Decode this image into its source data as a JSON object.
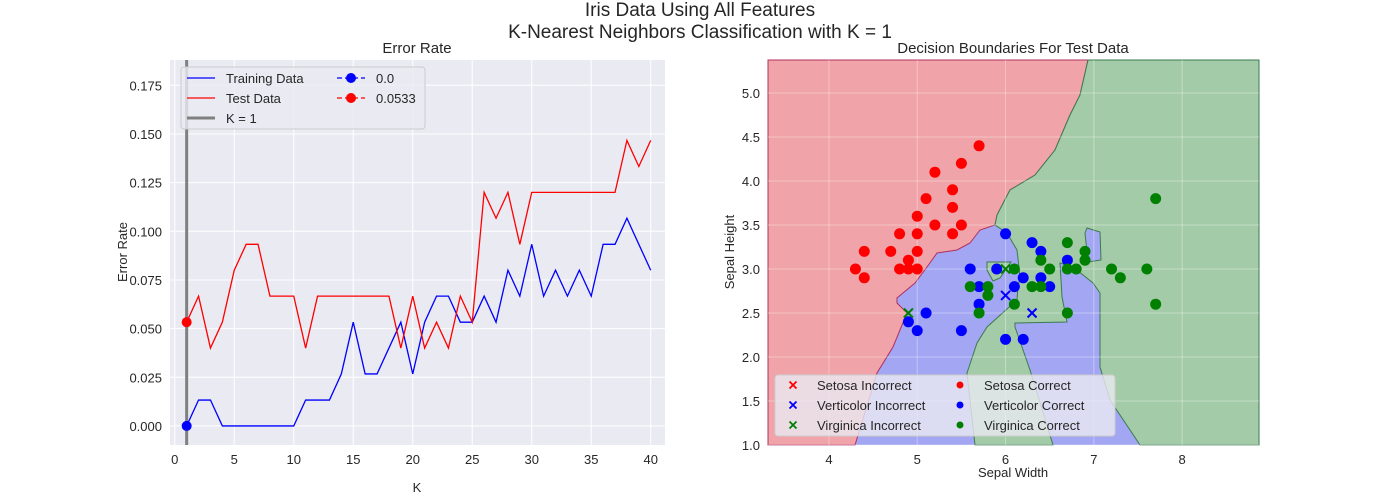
{
  "figure": {
    "title_line1": "Iris Data Using All Features",
    "title_line2": "K-Nearest Neighbors Classification with K = 1"
  },
  "colors": {
    "bg": "#EAEAF2",
    "red": "#FF0000",
    "blue": "#0000FF",
    "green": "#008000",
    "kline": "#808080",
    "region_red": "#F0A3A8",
    "region_blue": "#A3A6F2",
    "region_green": "#A3CBA7"
  },
  "chart_data": [
    {
      "type": "line",
      "title": "Error Rate",
      "xlabel": "K",
      "ylabel": "Error Rate",
      "xlim": [
        -0.4,
        41.2
      ],
      "ylim": [
        -0.0098,
        0.188
      ],
      "xticks": [
        0,
        5,
        10,
        15,
        20,
        25,
        30,
        35,
        40
      ],
      "yticks": [
        "0.000",
        "0.025",
        "0.050",
        "0.075",
        "0.100",
        "0.125",
        "0.150",
        "0.175"
      ],
      "grid": true,
      "legend_position": "top-left",
      "x": [
        1,
        2,
        3,
        4,
        5,
        6,
        7,
        8,
        9,
        10,
        11,
        12,
        13,
        14,
        15,
        16,
        17,
        18,
        19,
        20,
        21,
        22,
        23,
        24,
        25,
        26,
        27,
        28,
        29,
        30,
        31,
        32,
        33,
        34,
        35,
        36,
        37,
        38,
        39,
        40
      ],
      "series": [
        {
          "name": "Training Data",
          "color": "#0000FF",
          "values": [
            0,
            0.0133,
            0.0133,
            0,
            0,
            0,
            0,
            0,
            0,
            0,
            0.0133,
            0.0133,
            0.0133,
            0.0267,
            0.0533,
            0.0267,
            0.0267,
            0.04,
            0.0533,
            0.0267,
            0.0533,
            0.0667,
            0.0667,
            0.0533,
            0.0533,
            0.0667,
            0.0533,
            0.08,
            0.0667,
            0.0933,
            0.0667,
            0.08,
            0.0667,
            0.08,
            0.0667,
            0.0933,
            0.0933,
            0.1067,
            0.0933,
            0.08
          ]
        },
        {
          "name": "Test Data",
          "color": "#FF0000",
          "values": [
            0.0533,
            0.0667,
            0.04,
            0.0533,
            0.08,
            0.0933,
            0.0933,
            0.0667,
            0.0667,
            0.0667,
            0.04,
            0.0667,
            0.0667,
            0.0667,
            0.0667,
            0.0667,
            0.0667,
            0.0667,
            0.04,
            0.0667,
            0.04,
            0.0533,
            0.04,
            0.0667,
            0.0533,
            0.12,
            0.1067,
            0.12,
            0.0933,
            0.12,
            0.12,
            0.12,
            0.12,
            0.12,
            0.12,
            0.12,
            0.12,
            0.1467,
            0.1333,
            0.1467
          ]
        }
      ],
      "markers": [
        {
          "name": "0.0",
          "x": 1,
          "y": 0.0,
          "color": "#0000FF"
        },
        {
          "name": "0.0533",
          "x": 1,
          "y": 0.0533,
          "color": "#FF0000"
        }
      ],
      "vline": {
        "name": "K = 1",
        "x": 1
      }
    },
    {
      "type": "scatter",
      "title": "Decision Boundaries For Test Data",
      "xlabel": "Sepal Width",
      "ylabel": "Sepal Height",
      "xlim": [
        3.31,
        8.87
      ],
      "ylim": [
        1.0,
        5.375
      ],
      "xticks": [
        4,
        5,
        6,
        7,
        8
      ],
      "yticks": [
        "1.0",
        "1.5",
        "2.0",
        "2.5",
        "3.0",
        "3.5",
        "4.0",
        "4.5",
        "5.0"
      ],
      "grid": true,
      "legend_position": "lower-left",
      "legend": [
        "Setosa Incorrect",
        "Verticolor Incorrect",
        "Virginica Incorrect",
        "Setosa Correct",
        "Verticolor Correct",
        "Virginica Correct"
      ],
      "setosa_correct": [
        [
          5.7,
          4.4
        ],
        [
          5.5,
          4.2
        ],
        [
          5.2,
          4.1
        ],
        [
          5.4,
          3.9
        ],
        [
          5.1,
          3.8
        ],
        [
          5.4,
          3.7
        ],
        [
          5.0,
          3.6
        ],
        [
          5.2,
          3.5
        ],
        [
          5.5,
          3.5
        ],
        [
          4.8,
          3.4
        ],
        [
          5.0,
          3.4
        ],
        [
          5.4,
          3.4
        ],
        [
          4.4,
          3.2
        ],
        [
          4.7,
          3.2
        ],
        [
          5.0,
          3.2
        ],
        [
          4.9,
          3.1
        ],
        [
          4.3,
          3.0
        ],
        [
          4.8,
          3.0
        ],
        [
          4.9,
          3.0
        ],
        [
          5.0,
          3.0
        ],
        [
          4.4,
          2.9
        ]
      ],
      "versicolor_correct": [
        [
          6.0,
          3.4
        ],
        [
          6.3,
          3.3
        ],
        [
          6.4,
          3.2
        ],
        [
          6.7,
          3.1
        ],
        [
          5.6,
          3.0
        ],
        [
          5.9,
          3.0
        ],
        [
          6.2,
          2.9
        ],
        [
          6.4,
          2.9
        ],
        [
          5.7,
          2.8
        ],
        [
          6.1,
          2.8
        ],
        [
          6.5,
          2.8
        ],
        [
          5.7,
          2.6
        ],
        [
          5.1,
          2.5
        ],
        [
          4.9,
          2.4
        ],
        [
          5.0,
          2.3
        ],
        [
          5.5,
          2.3
        ],
        [
          6.0,
          2.2
        ],
        [
          6.2,
          2.2
        ]
      ],
      "virginica_correct": [
        [
          7.7,
          3.8
        ],
        [
          6.7,
          3.3
        ],
        [
          6.9,
          3.2
        ],
        [
          6.4,
          3.1
        ],
        [
          6.9,
          3.1
        ],
        [
          6.1,
          3.0
        ],
        [
          6.5,
          3.0
        ],
        [
          6.7,
          3.0
        ],
        [
          6.8,
          3.0
        ],
        [
          7.2,
          3.0
        ],
        [
          7.6,
          3.0
        ],
        [
          7.3,
          2.9
        ],
        [
          5.6,
          2.8
        ],
        [
          5.8,
          2.8
        ],
        [
          6.3,
          2.8
        ],
        [
          6.4,
          2.8
        ],
        [
          5.8,
          2.7
        ],
        [
          6.1,
          2.6
        ],
        [
          5.7,
          2.5
        ],
        [
          6.7,
          2.5
        ],
        [
          7.7,
          2.6
        ]
      ],
      "setosa_incorrect": [],
      "versicolor_incorrect": [
        [
          6.0,
          2.7
        ],
        [
          6.3,
          2.5
        ]
      ],
      "virginica_incorrect": [
        [
          6.0,
          3.0
        ],
        [
          4.9,
          2.5
        ]
      ]
    }
  ]
}
